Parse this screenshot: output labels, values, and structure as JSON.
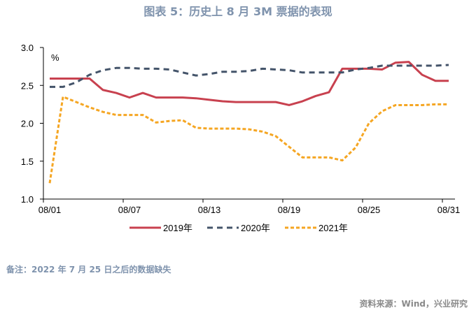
{
  "title": "图表 5：历史上 8 月 3M 票据的表现",
  "note": "备注：2022 年 7 月 25 日之后的数据缺失",
  "source": "资料来源：Wind，兴业研究",
  "chart_data": {
    "type": "line",
    "title": "图表 5：历史上 8 月 3M 票据的表现",
    "unit_label": "%",
    "x": [
      "08/01",
      "08/02",
      "08/03",
      "08/04",
      "08/05",
      "08/06",
      "08/07",
      "08/08",
      "08/09",
      "08/10",
      "08/11",
      "08/12",
      "08/13",
      "08/14",
      "08/15",
      "08/16",
      "08/17",
      "08/18",
      "08/19",
      "08/20",
      "08/21",
      "08/22",
      "08/23",
      "08/24",
      "08/25",
      "08/26",
      "08/27",
      "08/28",
      "08/29",
      "08/30",
      "08/31"
    ],
    "x_tick_labels": [
      "08/01",
      "08/07",
      "08/13",
      "08/19",
      "08/25",
      "08/31"
    ],
    "ylim": [
      1.0,
      3.0
    ],
    "y_tick_labels": [
      "1.0",
      "1.5",
      "2.0",
      "2.5",
      "3.0"
    ],
    "grid": false,
    "legend_position": "bottom",
    "series": [
      {
        "name": "2019年",
        "color": "#c8414f",
        "style": "solid",
        "values": [
          2.59,
          2.59,
          2.59,
          2.59,
          2.44,
          2.4,
          2.34,
          2.4,
          2.34,
          2.34,
          2.34,
          2.33,
          2.31,
          2.29,
          2.28,
          2.28,
          2.28,
          2.28,
          2.24,
          2.29,
          2.36,
          2.41,
          2.72,
          2.72,
          2.72,
          2.71,
          2.8,
          2.81,
          2.64,
          2.56,
          2.56
        ]
      },
      {
        "name": "2020年",
        "color": "#44546a",
        "style": "dash",
        "values": [
          2.48,
          2.48,
          2.54,
          2.64,
          2.7,
          2.73,
          2.73,
          2.72,
          2.72,
          2.71,
          2.67,
          2.63,
          2.65,
          2.68,
          2.68,
          2.69,
          2.72,
          2.71,
          2.7,
          2.67,
          2.67,
          2.67,
          2.67,
          2.71,
          2.73,
          2.76,
          2.76,
          2.76,
          2.76,
          2.76,
          2.77
        ]
      },
      {
        "name": "2021年",
        "color": "#f5a623",
        "style": "dot",
        "values": [
          1.21,
          2.35,
          2.28,
          2.21,
          2.15,
          2.11,
          2.11,
          2.11,
          2.01,
          2.03,
          2.04,
          1.94,
          1.93,
          1.93,
          1.93,
          1.92,
          1.89,
          1.83,
          1.69,
          1.55,
          1.55,
          1.55,
          1.51,
          1.68,
          2.0,
          2.16,
          2.24,
          2.24,
          2.24,
          2.25,
          2.25
        ]
      }
    ]
  }
}
